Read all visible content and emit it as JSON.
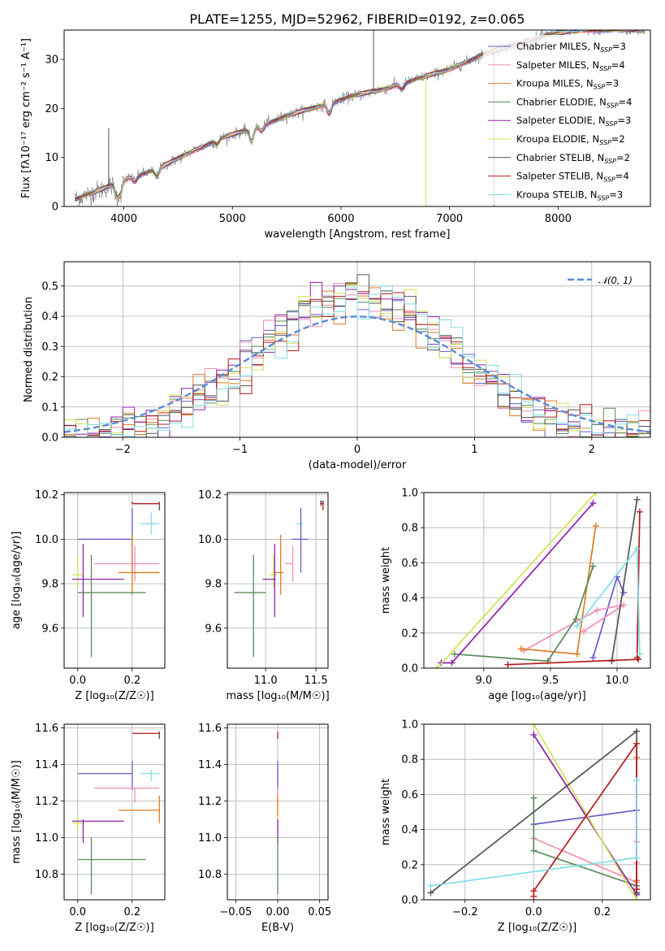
{
  "title": "PLATE=1255, MJD=52962, FIBERID=0192, z=0.065",
  "colors": {
    "Chabrier MILES": "#6a5acd",
    "Salpeter MILES": "#f48fb1",
    "Kroupa MILES": "#e07b20",
    "Chabrier ELODIE": "#5a8a5a",
    "Salpeter ELODIE": "#8e24aa",
    "Kroupa ELODIE": "#d4e157",
    "Chabrier STELIB": "#555555",
    "Salpeter STELIB": "#b71c1c",
    "Kroupa STELIB": "#80deea",
    "normal_curve": "#5b8bd6"
  },
  "chart_data": [
    {
      "id": "spectrum",
      "type": "line",
      "xlabel": "wavelength [Angstrom, rest frame]",
      "ylabel": "Flux [fλ10⁻¹⁷ erg cm⁻² s⁻¹ A⁻¹]",
      "xlim": [
        3450,
        8850
      ],
      "ylim": [
        0,
        36
      ],
      "xticks": [
        4000,
        5000,
        6000,
        7000,
        8000
      ],
      "yticks": [
        0,
        10,
        20,
        30
      ],
      "grid": false,
      "legend_position": "bottom-right",
      "series": [
        {
          "name": "Chabrier MILES, N_SSP=3",
          "label_main": "Chabrier MILES, N",
          "label_sub": "SSP",
          "label_tail": "=3"
        },
        {
          "name": "Salpeter MILES, N_SSP=4",
          "label_main": "Salpeter MILES, N",
          "label_sub": "SSP",
          "label_tail": "=4"
        },
        {
          "name": "Kroupa MILES, N_SSP=3",
          "label_main": "Kroupa MILES, N",
          "label_sub": "SSP",
          "label_tail": "=3"
        },
        {
          "name": "Chabrier ELODIE, N_SSP=4",
          "label_main": "Chabrier ELODIE, N",
          "label_sub": "SSP",
          "label_tail": "=4"
        },
        {
          "name": "Salpeter ELODIE, N_SSP=3",
          "label_main": "Salpeter ELODIE, N",
          "label_sub": "SSP",
          "label_tail": "=3"
        },
        {
          "name": "Kroupa ELODIE, N_SSP=2",
          "label_main": "Kroupa ELODIE, N",
          "label_sub": "SSP",
          "label_tail": "=2"
        },
        {
          "name": "Chabrier STELIB, N_SSP=2",
          "label_main": "Chabrier STELIB, N",
          "label_sub": "SSP",
          "label_tail": "=2"
        },
        {
          "name": "Salpeter STELIB, N_SSP=4",
          "label_main": "Salpeter STELIB, N",
          "label_sub": "SSP",
          "label_tail": "=4"
        },
        {
          "name": "Kroupa STELIB, N_SSP=3",
          "label_main": "Kroupa STELIB, N",
          "label_sub": "SSP",
          "label_tail": "=3"
        }
      ],
      "continuum_knots": {
        "x": [
          3550,
          3800,
          4000,
          4300,
          4600,
          4900,
          5200,
          5500,
          5800,
          6100,
          6400,
          6700,
          7000,
          7300,
          7600,
          7900,
          8200,
          8500,
          8800
        ],
        "y": [
          1.5,
          3.5,
          5.5,
          7.5,
          11.0,
          14.0,
          16.0,
          18.5,
          20.5,
          22.5,
          24.0,
          26.0,
          28.0,
          31.0,
          33.0,
          35.0,
          36.0,
          36.0,
          36.0
        ]
      },
      "spikes": [
        {
          "x": 6300,
          "y": 36,
          "series": "Chabrier STELIB"
        },
        {
          "x": 6780,
          "y": 0,
          "series": "Kroupa ELODIE"
        },
        {
          "x": 7410,
          "y": 0,
          "series": "Salpeter STELIB"
        },
        {
          "x": 3860,
          "y": 16,
          "series": "Chabrier STELIB"
        }
      ]
    },
    {
      "id": "residual-histogram",
      "type": "bar",
      "xlabel": "(data-model)/error",
      "ylabel": "Normed distribution",
      "xlim": [
        -2.5,
        2.5
      ],
      "ylim": [
        0,
        0.58
      ],
      "xticks": [
        -2,
        -1,
        0,
        1,
        2
      ],
      "yticks": [
        0.0,
        0.1,
        0.2,
        0.3,
        0.4,
        0.5
      ],
      "grid": true,
      "legend_position": "top-right",
      "legend": [
        {
          "label": "𝒩(0, 1)",
          "style": "dashed"
        }
      ],
      "bin_width": 0.1,
      "bin_range": [
        -2.5,
        2.5
      ],
      "normal_curve": {
        "mean": 0,
        "sigma": 1
      }
    },
    {
      "id": "age-vs-z",
      "type": "scatter",
      "xlabel": "Z [log₁₀(Z/Z☉)]",
      "ylabel": "age  [log₁₀(age/yr)]",
      "xlim": [
        -0.05,
        0.32
      ],
      "ylim": [
        9.42,
        10.21
      ],
      "xticks": [
        0.0,
        0.2
      ],
      "yticks": [
        9.6,
        9.8,
        10.0,
        10.2
      ],
      "grid": true,
      "points": [
        {
          "series": "Salpeter STELIB",
          "x": 0.2,
          "y": 10.16,
          "x_lo": 0.2,
          "x_hi": 0.3,
          "y_lo": 10.16,
          "y_hi": 10.17
        },
        {
          "series": "Chabrier STELIB",
          "x": 0.3,
          "y": 10.16,
          "x_lo": 0.3,
          "x_hi": 0.3,
          "y_lo": 10.13,
          "y_hi": 10.17
        },
        {
          "series": "Kroupa STELIB",
          "x": 0.27,
          "y": 10.07,
          "x_lo": 0.23,
          "x_hi": 0.3,
          "y_lo": 10.02,
          "y_hi": 10.12
        },
        {
          "series": "Chabrier MILES",
          "x": 0.2,
          "y": 10.0,
          "x_lo": 0.0,
          "x_hi": 0.2,
          "y_lo": 9.85,
          "y_hi": 10.14
        },
        {
          "series": "Salpeter MILES",
          "x": 0.21,
          "y": 9.89,
          "x_lo": 0.06,
          "x_hi": 0.3,
          "y_lo": 9.81,
          "y_hi": 9.97
        },
        {
          "series": "Kroupa MILES",
          "x": 0.2,
          "y": 9.85,
          "x_lo": 0.15,
          "x_hi": 0.3,
          "y_lo": 9.75,
          "y_hi": 10.02
        },
        {
          "series": "Kroupa ELODIE",
          "x": 0.0,
          "y": 9.84,
          "x_lo": -0.02,
          "x_hi": 0.02,
          "y_lo": 9.78,
          "y_hi": 9.93
        },
        {
          "series": "Salpeter ELODIE",
          "x": 0.02,
          "y": 9.82,
          "x_lo": -0.02,
          "x_hi": 0.17,
          "y_lo": 9.65,
          "y_hi": 9.98
        },
        {
          "series": "Chabrier ELODIE",
          "x": 0.05,
          "y": 9.76,
          "x_lo": 0.0,
          "x_hi": 0.25,
          "y_lo": 9.47,
          "y_hi": 9.93
        }
      ]
    },
    {
      "id": "age-vs-mass",
      "type": "scatter",
      "xlabel": "mass [log₁₀(M/M☉)]",
      "ylabel": "",
      "xlim": [
        10.62,
        11.62
      ],
      "ylim": [
        9.42,
        10.21
      ],
      "xticks": [
        11.0,
        11.5
      ],
      "yticks": [
        9.6,
        9.8,
        10.0,
        10.2
      ],
      "grid": true,
      "points": [
        {
          "series": "Salpeter STELIB",
          "x": 11.57,
          "y": 10.16,
          "x_lo": 11.54,
          "x_hi": 11.58,
          "y_lo": 10.13,
          "y_hi": 10.17
        },
        {
          "series": "Chabrier STELIB",
          "x": 11.55,
          "y": 10.17,
          "x_lo": 11.54,
          "x_hi": 11.58,
          "y_lo": 10.15,
          "y_hi": 10.17
        },
        {
          "series": "Kroupa STELIB",
          "x": 11.35,
          "y": 10.07,
          "x_lo": 11.31,
          "x_hi": 11.36,
          "y_lo": 10.02,
          "y_hi": 10.12
        },
        {
          "series": "Chabrier MILES",
          "x": 11.35,
          "y": 10.0,
          "x_lo": 11.26,
          "x_hi": 11.42,
          "y_lo": 9.85,
          "y_hi": 10.14
        },
        {
          "series": "Salpeter MILES",
          "x": 11.27,
          "y": 9.89,
          "x_lo": 11.19,
          "x_hi": 11.27,
          "y_lo": 9.81,
          "y_hi": 9.97
        },
        {
          "series": "Kroupa MILES",
          "x": 11.15,
          "y": 9.85,
          "x_lo": 11.08,
          "x_hi": 11.18,
          "y_lo": 9.75,
          "y_hi": 10.02
        },
        {
          "series": "Kroupa ELODIE",
          "x": 11.08,
          "y": 9.84,
          "x_lo": 11.04,
          "x_hi": 11.12,
          "y_lo": 9.78,
          "y_hi": 9.93
        },
        {
          "series": "Salpeter ELODIE",
          "x": 11.09,
          "y": 9.82,
          "x_lo": 10.97,
          "x_hi": 11.1,
          "y_lo": 9.65,
          "y_hi": 9.98
        },
        {
          "series": "Chabrier ELODIE",
          "x": 10.88,
          "y": 9.76,
          "x_lo": 10.69,
          "x_hi": 11.0,
          "y_lo": 9.47,
          "y_hi": 9.93
        }
      ]
    },
    {
      "id": "mass-weight-vs-age",
      "type": "line",
      "xlabel": "age  [log₁₀(age/yr)]",
      "ylabel": "mass weight",
      "xlim": [
        8.55,
        10.25
      ],
      "ylim": [
        0.0,
        1.0
      ],
      "xticks": [
        9.0,
        9.5,
        10.0
      ],
      "yticks": [
        0.0,
        0.2,
        0.4,
        0.6,
        0.8,
        1.0
      ],
      "grid": true,
      "series": [
        {
          "name": "Chabrier MILES",
          "x": [
            9.82,
            10.0,
            10.05
          ],
          "y": [
            0.06,
            0.52,
            0.43
          ]
        },
        {
          "name": "Salpeter MILES",
          "x": [
            9.3,
            9.85,
            10.05,
            9.75
          ],
          "y": [
            0.1,
            0.33,
            0.36,
            0.21
          ]
        },
        {
          "name": "Kroupa MILES",
          "x": [
            9.28,
            9.7,
            9.84
          ],
          "y": [
            0.11,
            0.08,
            0.81
          ]
        },
        {
          "name": "Chabrier ELODIE",
          "x": [
            8.78,
            9.48,
            9.69,
            9.82
          ],
          "y": [
            0.08,
            0.04,
            0.28,
            0.58
          ]
        },
        {
          "name": "Salpeter ELODIE",
          "x": [
            8.68,
            8.76,
            9.82
          ],
          "y": [
            0.03,
            0.03,
            0.94
          ]
        },
        {
          "name": "Kroupa ELODIE",
          "x": [
            8.65,
            9.84
          ],
          "y": [
            0.0,
            1.0
          ]
        },
        {
          "name": "Chabrier STELIB",
          "x": [
            9.96,
            10.15
          ],
          "y": [
            0.04,
            0.96
          ]
        },
        {
          "name": "Salpeter STELIB",
          "x": [
            9.18,
            10.16,
            10.15,
            10.17
          ],
          "y": [
            0.02,
            0.05,
            0.06,
            0.89
          ]
        },
        {
          "name": "Kroupa STELIB",
          "x": [
            9.7,
            10.15,
            10.17
          ],
          "y": [
            0.24,
            0.68,
            0.08
          ]
        }
      ]
    },
    {
      "id": "mass-vs-z",
      "type": "scatter",
      "xlabel": "Z [log₁₀(Z/Z☉)]",
      "ylabel": "mass [log₁₀(M/M☉)]",
      "xlim": [
        -0.05,
        0.32
      ],
      "ylim": [
        10.66,
        11.62
      ],
      "xticks": [
        0.0,
        0.2
      ],
      "yticks": [
        10.8,
        11.0,
        11.2,
        11.4,
        11.6
      ],
      "grid": true,
      "points": [
        {
          "series": "Salpeter STELIB",
          "x": 0.3,
          "y": 11.57,
          "x_lo": 0.2,
          "x_hi": 0.3,
          "y_lo": 11.57,
          "y_hi": 11.58
        },
        {
          "series": "Chabrier STELIB",
          "x": 0.3,
          "y": 11.55,
          "x_lo": 0.3,
          "x_hi": 0.3,
          "y_lo": 11.54,
          "y_hi": 11.58
        },
        {
          "series": "Kroupa STELIB",
          "x": 0.27,
          "y": 11.35,
          "x_lo": 0.23,
          "x_hi": 0.3,
          "y_lo": 11.31,
          "y_hi": 11.37
        },
        {
          "series": "Chabrier MILES",
          "x": 0.2,
          "y": 11.35,
          "x_lo": 0.0,
          "x_hi": 0.2,
          "y_lo": 11.26,
          "y_hi": 11.42
        },
        {
          "series": "Salpeter MILES",
          "x": 0.21,
          "y": 11.27,
          "x_lo": 0.06,
          "x_hi": 0.3,
          "y_lo": 11.19,
          "y_hi": 11.27
        },
        {
          "series": "Kroupa MILES",
          "x": 0.3,
          "y": 11.15,
          "x_lo": 0.15,
          "x_hi": 0.3,
          "y_lo": 11.08,
          "y_hi": 11.23
        },
        {
          "series": "Kroupa ELODIE",
          "x": 0.0,
          "y": 11.08,
          "x_lo": -0.02,
          "x_hi": 0.02,
          "y_lo": 11.04,
          "y_hi": 11.12
        },
        {
          "series": "Salpeter ELODIE",
          "x": 0.02,
          "y": 11.09,
          "x_lo": -0.02,
          "x_hi": 0.17,
          "y_lo": 10.97,
          "y_hi": 11.1
        },
        {
          "series": "Chabrier ELODIE",
          "x": 0.05,
          "y": 10.88,
          "x_lo": 0.0,
          "x_hi": 0.25,
          "y_lo": 10.69,
          "y_hi": 11.0
        }
      ]
    },
    {
      "id": "mass-vs-ebv",
      "type": "scatter",
      "xlabel": "E(B-V)",
      "ylabel": "",
      "xlim": [
        -0.06,
        0.06
      ],
      "ylim": [
        10.66,
        11.62
      ],
      "xticks": [
        -0.05,
        0.0,
        0.05
      ],
      "xtick_labels": [
        "−0.05",
        "0.00",
        "0.05"
      ],
      "yticks": [
        10.8,
        11.0,
        11.2,
        11.4,
        11.6
      ],
      "grid": true,
      "points": [
        {
          "series": "Salpeter STELIB",
          "x": 0.0,
          "y": 11.57,
          "y_lo": 11.54,
          "y_hi": 11.58
        },
        {
          "series": "Kroupa STELIB",
          "x": 0.0,
          "y": 11.35,
          "y_lo": 11.31,
          "y_hi": 11.37
        },
        {
          "series": "Chabrier MILES",
          "x": 0.0,
          "y": 11.35,
          "y_lo": 11.26,
          "y_hi": 11.42
        },
        {
          "series": "Salpeter MILES",
          "x": 0.0,
          "y": 11.27,
          "y_lo": 11.19,
          "y_hi": 11.27
        },
        {
          "series": "Kroupa MILES",
          "x": 0.0,
          "y": 11.15,
          "y_lo": 11.08,
          "y_hi": 11.23
        },
        {
          "series": "Kroupa ELODIE",
          "x": 0.0,
          "y": 11.08,
          "y_lo": 11.04,
          "y_hi": 11.12
        },
        {
          "series": "Salpeter ELODIE",
          "x": 0.0,
          "y": 11.09,
          "y_lo": 10.97,
          "y_hi": 11.1
        },
        {
          "series": "Chabrier ELODIE",
          "x": 0.0,
          "y": 10.88,
          "y_lo": 10.69,
          "y_hi": 11.0
        }
      ]
    },
    {
      "id": "mass-weight-vs-z",
      "type": "line",
      "xlabel": "Z [log₁₀(Z/Z☉)]",
      "ylabel": "mass weight",
      "xlim": [
        -0.32,
        0.34
      ],
      "ylim": [
        0.0,
        1.0
      ],
      "xticks": [
        -0.2,
        0.0,
        0.2
      ],
      "xtick_labels": [
        "−0.2",
        "0.0",
        "0.2"
      ],
      "yticks": [
        0.0,
        0.2,
        0.4,
        0.6,
        0.8,
        1.0
      ],
      "grid": true,
      "series": [
        {
          "name": "Chabrier MILES",
          "x": [
            0.0,
            0.3,
            0.3
          ],
          "y": [
            0.43,
            0.51,
            0.06
          ]
        },
        {
          "name": "Salpeter MILES",
          "x": [
            0.0,
            0.3,
            0.3,
            0.3
          ],
          "y": [
            0.35,
            0.1,
            0.33,
            0.21
          ]
        },
        {
          "name": "Kroupa MILES",
          "x": [
            0.3,
            0.3,
            0.3
          ],
          "y": [
            0.11,
            0.08,
            0.81
          ]
        },
        {
          "name": "Chabrier ELODIE",
          "x": [
            0.0,
            0.0,
            0.3,
            0.3
          ],
          "y": [
            0.58,
            0.28,
            0.08,
            0.04
          ]
        },
        {
          "name": "Salpeter ELODIE",
          "x": [
            0.0,
            0.3,
            0.3
          ],
          "y": [
            0.94,
            0.03,
            0.03
          ]
        },
        {
          "name": "Kroupa ELODIE",
          "x": [
            0.0,
            0.3
          ],
          "y": [
            1.0,
            0.0
          ]
        },
        {
          "name": "Chabrier STELIB",
          "x": [
            -0.3,
            0.3,
            0.3
          ],
          "y": [
            0.04,
            0.96,
            0.04
          ]
        },
        {
          "name": "Salpeter STELIB",
          "x": [
            0.0,
            0.0,
            0.3,
            0.3
          ],
          "y": [
            0.02,
            0.05,
            0.89,
            0.06
          ]
        },
        {
          "name": "Kroupa STELIB",
          "x": [
            -0.3,
            0.3,
            0.3
          ],
          "y": [
            0.08,
            0.24,
            0.68
          ]
        }
      ]
    }
  ]
}
